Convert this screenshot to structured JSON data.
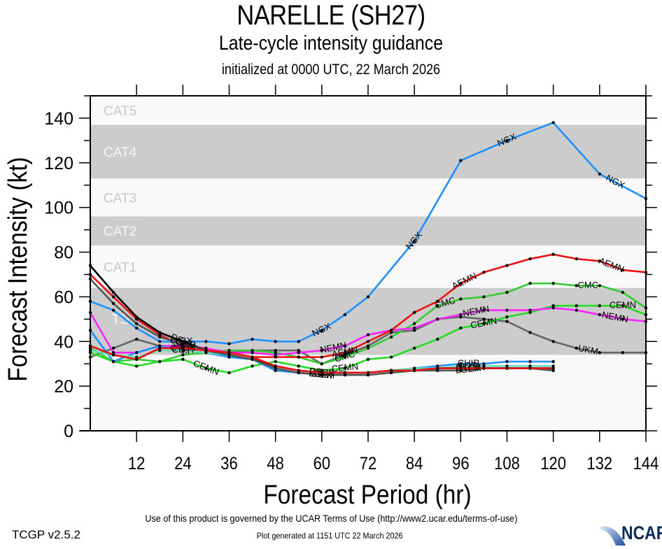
{
  "header": {
    "title": "NARELLE (SH27)",
    "subtitle": "Late-cycle intensity guidance",
    "init": "initialized at 0000 UTC, 22 March 2026"
  },
  "footer": {
    "terms": "Use of this product is governed by the UCAR Terms of Use (http://www2.ucar.edu/terms-of-use)",
    "generated": "Plot generated at 1151 UTC   22 March 2026",
    "version": "TCGP v2.5.2",
    "logo": "NCAR"
  },
  "chart_data": {
    "type": "line",
    "title": "NARELLE (SH27)",
    "xlabel": "Forecast Period (hr)",
    "ylabel": "Forecast Intensity (kt)",
    "xlim": [
      0,
      144
    ],
    "ylim": [
      0,
      150
    ],
    "xticks": [
      12,
      24,
      36,
      48,
      60,
      72,
      84,
      96,
      108,
      120,
      132,
      144
    ],
    "yticks": [
      0,
      20,
      40,
      60,
      80,
      100,
      120,
      140
    ],
    "grid": false,
    "legend": "inline line labels",
    "bands": [
      {
        "name": "TD",
        "label": "",
        "from": 0,
        "to": 34,
        "shade": "light"
      },
      {
        "name": "TS",
        "label": "TS",
        "from": 34,
        "to": 64,
        "shade": "dark"
      },
      {
        "name": "CAT1",
        "label": "CAT1",
        "from": 64,
        "to": 83,
        "shade": "light"
      },
      {
        "name": "CAT2",
        "label": "CAT2",
        "from": 83,
        "to": 96,
        "shade": "dark"
      },
      {
        "name": "CAT3",
        "label": "CAT3",
        "from": 96,
        "to": 113,
        "shade": "light"
      },
      {
        "name": "CAT4",
        "label": "CAT4",
        "from": 113,
        "to": 137,
        "shade": "dark"
      },
      {
        "name": "CAT5",
        "label": "CAT5",
        "from": 137,
        "to": 150,
        "shade": "light"
      }
    ],
    "band_colors": {
      "light": "#f9f9f9",
      "dark": "#cccccc",
      "label_on_light": "#c8c8c8",
      "label_on_dark": "#f5f5f5"
    },
    "series": [
      {
        "name": "UKM",
        "color": "#666666",
        "x": [
          0,
          6,
          12,
          18,
          24,
          30,
          36,
          42,
          48,
          54,
          60,
          66,
          72,
          78,
          84,
          90,
          96,
          102,
          108,
          114,
          120,
          126,
          132,
          138,
          144
        ],
        "y": [
          33,
          37,
          41,
          38,
          37,
          36,
          35,
          36,
          36,
          36,
          30,
          34,
          38,
          44,
          45,
          50,
          51,
          50,
          49,
          44,
          40,
          37,
          35,
          35,
          35
        ],
        "labels_at": [
          66,
          129
        ]
      },
      {
        "name": "CEMN",
        "color": "#22dd22",
        "x": [
          0,
          6,
          12,
          18,
          24,
          30,
          36,
          42,
          48,
          54,
          60,
          66,
          72,
          78,
          84,
          90,
          96,
          102,
          108,
          114,
          120,
          126,
          132,
          138,
          144
        ],
        "y": [
          35,
          31,
          29,
          31,
          32,
          28,
          26,
          29,
          31,
          29,
          27,
          28,
          32,
          33,
          37,
          41,
          46,
          48,
          51,
          53,
          56,
          56,
          56,
          56,
          52
        ],
        "labels_at": [
          30,
          66,
          102,
          138
        ]
      },
      {
        "name": "CMC",
        "color": "#33cc33",
        "x": [
          0,
          6,
          12,
          18,
          24,
          30,
          36,
          42,
          48,
          54,
          60,
          66,
          72,
          78,
          84,
          90,
          96,
          102,
          108,
          114,
          120,
          126,
          132,
          138,
          144
        ],
        "y": [
          37,
          31,
          32,
          31,
          34,
          35,
          36,
          36,
          35,
          33,
          30,
          33,
          37,
          42,
          48,
          56,
          59,
          60,
          62,
          66,
          66,
          65,
          65,
          62,
          55
        ],
        "labels_at": [
          66,
          92,
          129
        ]
      },
      {
        "name": "NEMN",
        "color": "#ff22ff",
        "x": [
          0,
          6,
          12,
          18,
          24,
          30,
          36,
          42,
          48,
          54,
          60,
          66,
          72,
          78,
          84,
          90,
          96,
          102,
          108,
          114,
          120,
          126,
          132,
          138,
          144
        ],
        "y": [
          53,
          35,
          35,
          38,
          38,
          37,
          35,
          35,
          34,
          35,
          36,
          38,
          43,
          45,
          46,
          50,
          52,
          54,
          54,
          54,
          55,
          54,
          52,
          50,
          49
        ],
        "labels_at": [
          63,
          100,
          136
        ]
      },
      {
        "name": "AEMN",
        "color": "#ee1111",
        "x": [
          0,
          6,
          12,
          18,
          24,
          30,
          36,
          42,
          48,
          54,
          60,
          66,
          72,
          78,
          84,
          90,
          96,
          102,
          108,
          114,
          120,
          126,
          132,
          138,
          144
        ],
        "y": [
          70,
          60,
          50,
          43,
          38,
          36,
          35,
          33,
          33,
          33,
          33,
          35,
          40,
          45,
          53,
          58,
          66,
          71,
          74,
          77,
          79,
          77,
          76,
          72,
          71
        ],
        "labels_at": [
          66,
          97,
          135
        ]
      },
      {
        "name": "NGX",
        "color": "#1e90ff",
        "x": [
          0,
          6,
          12,
          18,
          24,
          30,
          36,
          42,
          48,
          54,
          60,
          66,
          72,
          84,
          96,
          108,
          120,
          132,
          144
        ],
        "y": [
          58,
          54,
          46,
          40,
          40,
          40,
          39,
          41,
          40,
          40,
          45,
          52,
          60,
          85,
          121,
          130,
          138,
          115,
          104
        ],
        "labels_at": [
          24,
          60,
          84,
          108,
          136
        ]
      },
      {
        "name": "CHIP",
        "color": "#1e90ff",
        "x": [
          0,
          6,
          12,
          18,
          24,
          30,
          36,
          42,
          48,
          54,
          60,
          66,
          72,
          78,
          84,
          90,
          96,
          102,
          108,
          114,
          120
        ],
        "y": [
          45,
          31,
          35,
          38,
          36,
          35,
          33,
          32,
          27,
          26,
          25,
          26,
          26,
          27,
          28,
          29,
          30,
          30,
          31,
          31,
          31
        ],
        "labels_at": [
          24,
          60,
          98
        ]
      },
      {
        "name": "COTI",
        "color": "#66ddbb",
        "x": [
          0,
          6,
          12,
          18,
          24,
          30,
          36,
          42,
          48,
          54,
          60,
          66,
          72,
          78,
          84,
          90,
          96,
          102,
          108,
          114,
          120
        ],
        "y": [
          36,
          34,
          33,
          36,
          36,
          35,
          34,
          32,
          28,
          26,
          25,
          26,
          26,
          27,
          28,
          28,
          29,
          29,
          29,
          29,
          29
        ],
        "labels_at": [
          24,
          60,
          98
        ]
      },
      {
        "name": "DSHP",
        "color": "#000000",
        "x": [
          0,
          6,
          12,
          18,
          24,
          30,
          36,
          42,
          48,
          54,
          60,
          66,
          72,
          78,
          84,
          90,
          96,
          102,
          108,
          114,
          120
        ],
        "y": [
          74,
          62,
          51,
          44,
          40,
          36,
          34,
          32,
          29,
          27,
          26,
          26,
          26,
          27,
          27,
          28,
          28,
          28,
          28,
          28,
          28
        ],
        "labels_at": [
          24,
          60,
          98
        ]
      },
      {
        "name": "LGEM",
        "color": "#555555",
        "x": [
          0,
          6,
          12,
          18,
          24,
          30,
          36,
          42,
          48,
          54,
          60,
          66,
          72,
          78,
          84,
          90,
          96,
          102,
          108,
          114,
          120
        ],
        "y": [
          68,
          57,
          48,
          42,
          39,
          36,
          34,
          32,
          28,
          26,
          25,
          25,
          25,
          26,
          27,
          27,
          27,
          28,
          28,
          28,
          27
        ],
        "labels_at": [
          24,
          60,
          98
        ]
      },
      {
        "name": "CTCX",
        "color": "#ee1111",
        "x": [
          0,
          6,
          12,
          18,
          24,
          30,
          36,
          42,
          48,
          54,
          60,
          66,
          72,
          78,
          84,
          90,
          96,
          102,
          108,
          114,
          120
        ],
        "y": [
          38,
          34,
          32,
          37,
          37,
          36,
          35,
          33,
          29,
          27,
          26,
          26,
          26,
          27,
          27,
          28,
          28,
          28,
          28,
          28,
          28
        ],
        "labels_at": [
          24,
          60,
          98
        ]
      }
    ]
  }
}
